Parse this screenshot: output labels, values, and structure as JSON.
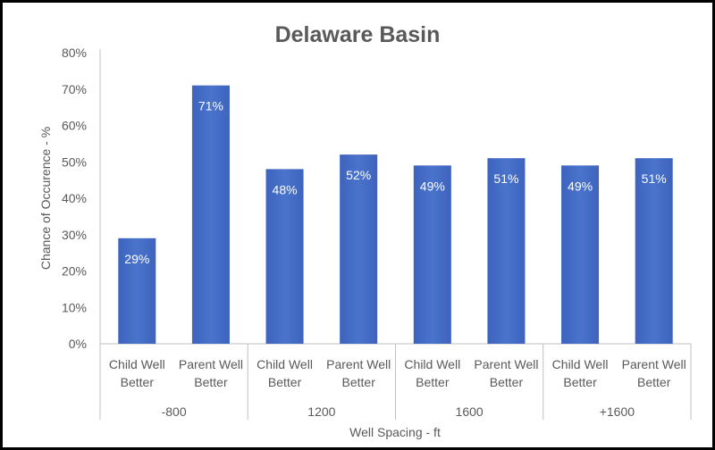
{
  "chart_data": {
    "type": "bar",
    "title": "Delaware Basin",
    "xlabel": "Well Spacing - ft",
    "ylabel": "Chance of Occurence - %",
    "ylim": [
      0,
      80
    ],
    "yticks": [
      "0%",
      "10%",
      "20%",
      "30%",
      "40%",
      "50%",
      "60%",
      "70%",
      "80%"
    ],
    "grid": false,
    "groups": [
      "-800",
      "1200",
      "1600",
      "+1600"
    ],
    "categories": [
      [
        "Child Well",
        "Better"
      ],
      [
        "Parent Well",
        "Better"
      ],
      [
        "Child Well",
        "Better"
      ],
      [
        "Parent Well",
        "Better"
      ],
      [
        "Child Well",
        "Better"
      ],
      [
        "Parent Well",
        "Better"
      ],
      [
        "Child Well",
        "Better"
      ],
      [
        "Parent Well",
        "Better"
      ]
    ],
    "values": [
      29,
      71,
      48,
      52,
      49,
      51,
      49,
      51
    ],
    "data_labels": [
      "29%",
      "71%",
      "48%",
      "52%",
      "49%",
      "51%",
      "49%",
      "51%"
    ],
    "bar_color": "#4472c4"
  }
}
